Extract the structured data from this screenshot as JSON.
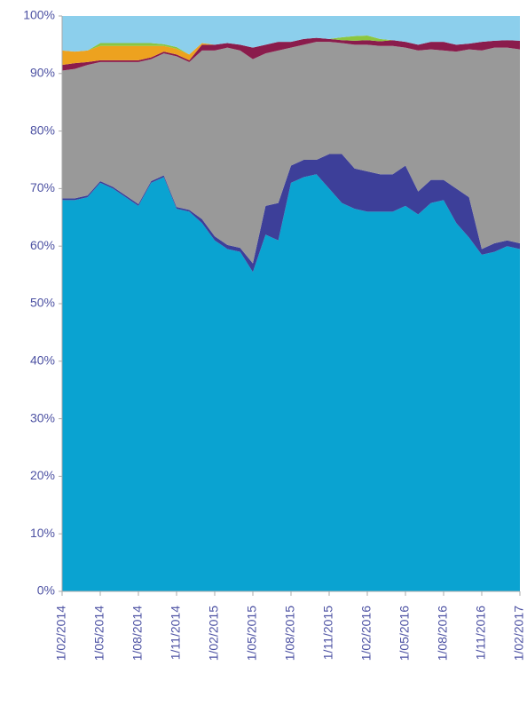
{
  "chart_data": {
    "type": "stacked_area",
    "categories": [
      "1/02/2014",
      null,
      null,
      "1/05/2014",
      null,
      null,
      "1/08/2014",
      null,
      null,
      "1/11/2014",
      null,
      null,
      "1/02/2015",
      null,
      null,
      "1/05/2015",
      null,
      null,
      "1/08/2015",
      null,
      null,
      "1/11/2015",
      null,
      null,
      "1/02/2016",
      null,
      null,
      "1/05/2016",
      null,
      null,
      "1/08/2016",
      null,
      null,
      "1/11/2016",
      null,
      null,
      "1/02/2017"
    ],
    "series": [
      {
        "color": "#0aa3d1",
        "values": [
          68,
          68,
          68.5,
          71,
          70,
          68.5,
          67,
          71,
          72,
          66.5,
          66,
          64,
          61,
          59.5,
          59,
          55.5,
          62,
          61,
          71,
          72,
          72.5,
          70,
          67.5,
          66.5,
          66,
          66,
          66,
          67,
          65.5,
          67.5,
          68,
          64,
          61.5,
          58.5,
          59,
          60,
          59.5
        ]
      },
      {
        "color": "#3d3f99",
        "values": [
          0.3,
          0.3,
          0.3,
          0.3,
          0.3,
          0.3,
          0.3,
          0.3,
          0.3,
          0.3,
          0.3,
          0.7,
          0.7,
          0.7,
          0.7,
          1.5,
          5,
          6.5,
          3,
          3,
          2.5,
          6,
          8.5,
          7,
          7,
          6.5,
          6.5,
          7,
          4,
          4,
          3.5,
          6,
          7,
          1,
          1.5,
          1,
          1
        ]
      },
      {
        "color": "#999999",
        "values": [
          22.2,
          22.5,
          22.7,
          20.7,
          21.7,
          23.2,
          24.7,
          21.2,
          21.2,
          26.2,
          25.7,
          29.3,
          32.3,
          34.3,
          34.3,
          35.5,
          26.5,
          26.5,
          20.5,
          20,
          20.5,
          19.5,
          19.3,
          21.5,
          22,
          22.3,
          22.3,
          20.5,
          24.5,
          22.7,
          22.5,
          23.8,
          25.7,
          34.5,
          34,
          33.5,
          33.7
        ]
      },
      {
        "color": "#8a1c4c",
        "values": [
          1,
          1,
          0.5,
          0.3,
          0.3,
          0.3,
          0.3,
          0.3,
          0.3,
          0.3,
          0.3,
          1,
          1,
          0.8,
          1,
          2,
          1.5,
          1.5,
          1,
          1,
          0.7,
          0.5,
          0.5,
          0.7,
          0.8,
          0.8,
          1,
          1,
          1,
          1.3,
          1.5,
          1.2,
          1,
          1.5,
          1.2,
          1.3,
          1.5
        ]
      },
      {
        "color": "#eda21f",
        "values": [
          2.5,
          2,
          2,
          2.5,
          2.5,
          2.5,
          2.5,
          2,
          1,
          1,
          1,
          0.3,
          0,
          0,
          0,
          0,
          0,
          0,
          0,
          0,
          0,
          0,
          0,
          0,
          0,
          0,
          0,
          0,
          0,
          0,
          0,
          0,
          0,
          0,
          0,
          0,
          0
        ]
      },
      {
        "color": "#8cc63f",
        "values": [
          0,
          0,
          0,
          0.5,
          0.5,
          0.5,
          0.5,
          0.5,
          0.3,
          0.3,
          0,
          0,
          0,
          0,
          0,
          0,
          0,
          0,
          0,
          0,
          0,
          0,
          0.5,
          0.8,
          0.8,
          0.4,
          0,
          0,
          0,
          0,
          0,
          0,
          0,
          0,
          0,
          0,
          0
        ]
      },
      {
        "color": "#8ccfec",
        "values": [
          6,
          6.2,
          6,
          4.7,
          4.7,
          4.7,
          4.7,
          4.7,
          4.9,
          5.4,
          6.7,
          4.7,
          5,
          4.7,
          5,
          5.5,
          5,
          4.5,
          4.5,
          4,
          3.8,
          4,
          3.7,
          3.5,
          3.4,
          4,
          4.2,
          4.5,
          5,
          4.5,
          4.5,
          5,
          4.8,
          4.5,
          4.3,
          4.2,
          4.3
        ]
      }
    ],
    "ylim": [
      0,
      100
    ],
    "yticks": [
      {
        "value": 0,
        "label": "0%"
      },
      {
        "value": 10,
        "label": "10%"
      },
      {
        "value": 20,
        "label": "20%"
      },
      {
        "value": 30,
        "label": "30%"
      },
      {
        "value": 40,
        "label": "40%"
      },
      {
        "value": 50,
        "label": "50%"
      },
      {
        "value": 60,
        "label": "60%"
      },
      {
        "value": 70,
        "label": "70%"
      },
      {
        "value": 80,
        "label": "80%"
      },
      {
        "value": 90,
        "label": "90%"
      },
      {
        "value": 100,
        "label": "100%"
      }
    ]
  }
}
